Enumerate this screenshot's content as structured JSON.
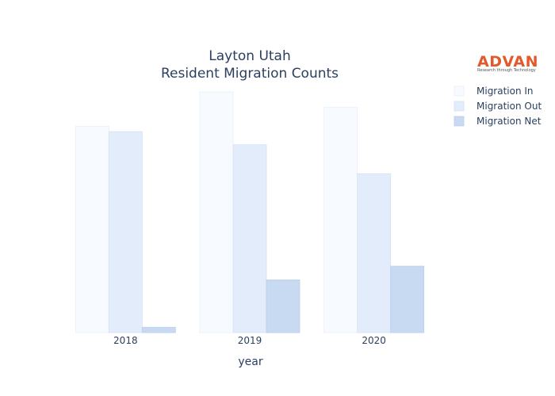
{
  "chart_data": {
    "type": "bar",
    "title": [
      "Layton Utah",
      "Resident Migration Counts"
    ],
    "xlabel": "year",
    "ylabel": "",
    "categories": [
      "2018",
      "2019",
      "2020"
    ],
    "series": [
      {
        "name": "Migration In",
        "values": [
          2700,
          3150,
          2950
        ],
        "color": "#f7faff",
        "stroke": "#eaf0f9"
      },
      {
        "name": "Migration Out",
        "values": [
          2630,
          2460,
          2080
        ],
        "color": "#e2ecfa",
        "stroke": "#d6e2f4"
      },
      {
        "name": "Migration Net",
        "values": [
          70,
          690,
          870
        ],
        "color": "#c7daf2",
        "stroke": "#b9cfec"
      }
    ],
    "ylim": [
      0,
      3150
    ],
    "grid": false,
    "legend_position": "top-right"
  },
  "logo": {
    "text": "ADVAN",
    "tagline": "Research through Technology"
  }
}
